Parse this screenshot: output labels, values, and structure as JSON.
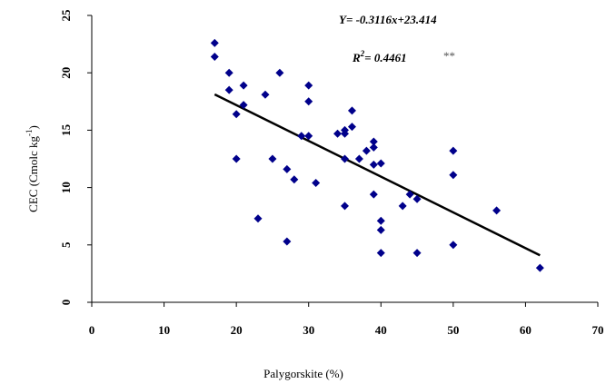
{
  "chart_data": {
    "type": "scatter",
    "title": "",
    "xlabel": "Palygorskite (%)",
    "ylabel_main": "CEC (Cmolc kg",
    "ylabel_sup": "-1",
    "ylabel_end": ")",
    "xlim": [
      0,
      70
    ],
    "ylim": [
      0,
      25
    ],
    "xticks": [
      0,
      10,
      20,
      30,
      40,
      50,
      60,
      70
    ],
    "yticks": [
      0,
      5,
      10,
      15,
      20,
      25
    ],
    "grid": false,
    "marker_color": "#00008B",
    "line_color": "#000000",
    "points": [
      {
        "x": 17,
        "y": 22.6
      },
      {
        "x": 17,
        "y": 21.4
      },
      {
        "x": 19,
        "y": 20.0
      },
      {
        "x": 19,
        "y": 18.5
      },
      {
        "x": 20,
        "y": 16.4
      },
      {
        "x": 21,
        "y": 18.9
      },
      {
        "x": 21,
        "y": 17.2
      },
      {
        "x": 20,
        "y": 12.5
      },
      {
        "x": 23,
        "y": 7.3
      },
      {
        "x": 24,
        "y": 18.1
      },
      {
        "x": 25,
        "y": 12.5
      },
      {
        "x": 26,
        "y": 20.0
      },
      {
        "x": 27,
        "y": 11.6
      },
      {
        "x": 27,
        "y": 5.3
      },
      {
        "x": 28,
        "y": 10.7
      },
      {
        "x": 29,
        "y": 14.5
      },
      {
        "x": 30,
        "y": 18.9
      },
      {
        "x": 30,
        "y": 17.5
      },
      {
        "x": 30,
        "y": 14.5
      },
      {
        "x": 31,
        "y": 10.4
      },
      {
        "x": 34,
        "y": 14.7
      },
      {
        "x": 35,
        "y": 14.7
      },
      {
        "x": 35,
        "y": 15.0
      },
      {
        "x": 35,
        "y": 12.5
      },
      {
        "x": 35,
        "y": 8.4
      },
      {
        "x": 36,
        "y": 16.7
      },
      {
        "x": 36,
        "y": 15.3
      },
      {
        "x": 37,
        "y": 12.5
      },
      {
        "x": 38,
        "y": 13.2
      },
      {
        "x": 39,
        "y": 14.0
      },
      {
        "x": 39,
        "y": 13.5
      },
      {
        "x": 39,
        "y": 12.0
      },
      {
        "x": 39,
        "y": 9.4
      },
      {
        "x": 40,
        "y": 12.1
      },
      {
        "x": 40,
        "y": 7.1
      },
      {
        "x": 40,
        "y": 6.3
      },
      {
        "x": 40,
        "y": 4.3
      },
      {
        "x": 43,
        "y": 8.4
      },
      {
        "x": 44,
        "y": 9.4
      },
      {
        "x": 45,
        "y": 9.0
      },
      {
        "x": 45,
        "y": 4.3
      },
      {
        "x": 50,
        "y": 13.2
      },
      {
        "x": 50,
        "y": 11.1
      },
      {
        "x": 50,
        "y": 5.0
      },
      {
        "x": 56,
        "y": 8.0
      },
      {
        "x": 62,
        "y": 3.0
      }
    ],
    "trendline": {
      "slope": -0.3116,
      "intercept": 23.414,
      "x_start": 17,
      "x_end": 62
    },
    "equation": "Y= -0.3116x+23.414",
    "r2_prefix": "R",
    "r2_sup": "2",
    "r2_value": "= 0.4461",
    "significance": "**"
  }
}
